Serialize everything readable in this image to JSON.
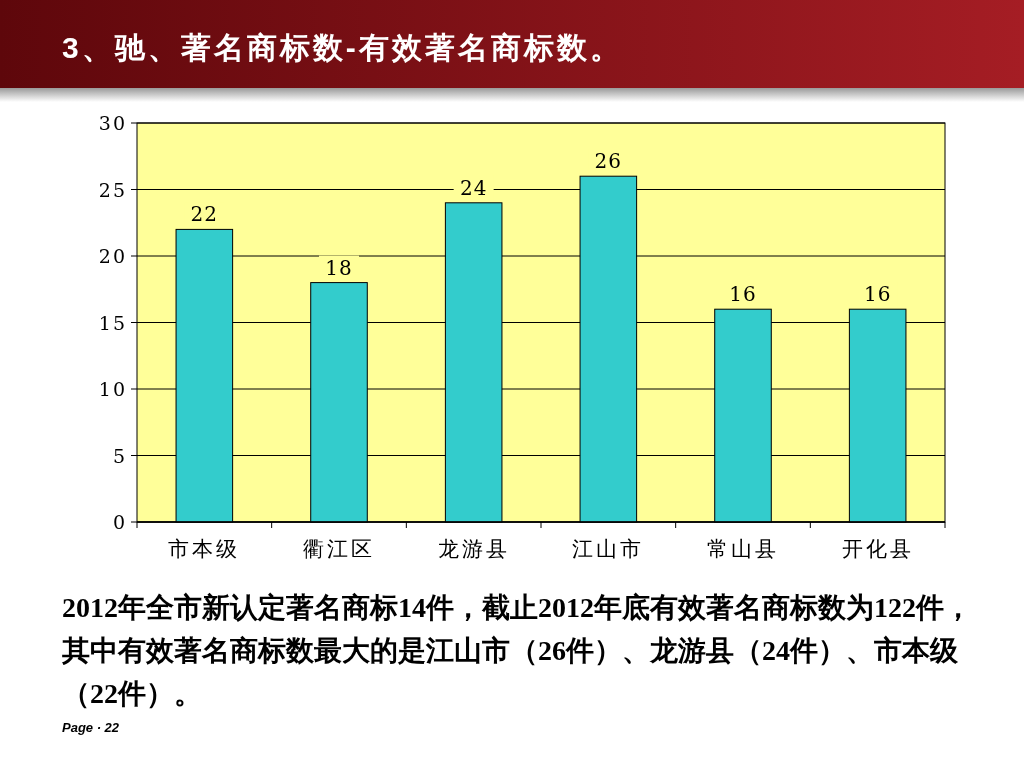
{
  "chart_data": {
    "type": "bar",
    "title": "3、驰、著名商标数-有效著名商标数。",
    "categories": [
      "市本级",
      "衢江区",
      "龙游县",
      "江山市",
      "常山县",
      "开化县"
    ],
    "values": [
      22,
      18,
      24,
      26,
      16,
      16
    ],
    "color": "#33cccc",
    "ylim": [
      0,
      30
    ],
    "yticks": [
      0,
      5,
      10,
      15,
      20,
      25,
      30
    ],
    "grid": "y",
    "data_labels": true,
    "annotations": [
      "2012年全市新认定著名商标14件，截止2012年底有效著名商标数为122件，其中有效著名商标数最大的是江山市（26件）、龙游县（24件）、市本级（22件）。",
      "Page · 22"
    ]
  }
}
